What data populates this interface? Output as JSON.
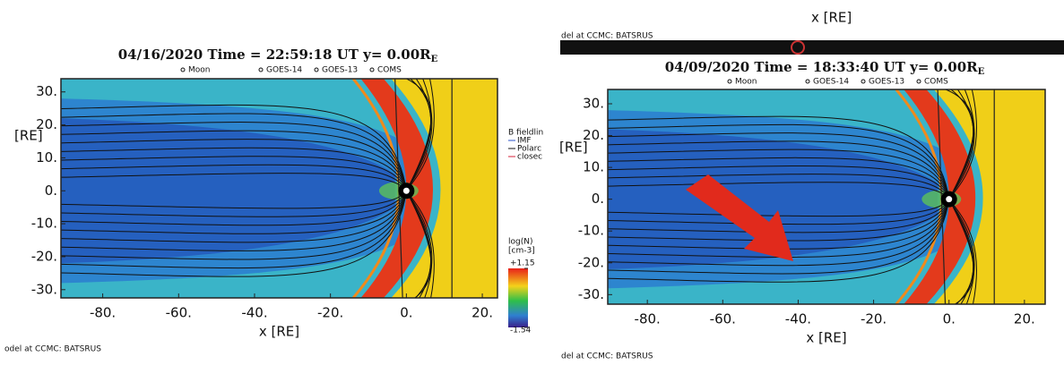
{
  "chart_data": [
    {
      "type": "field",
      "title": "04/16/2020 Time = 22:59:18 UT y= 0.00R",
      "title_subscript": "E",
      "markers": [
        "Moon",
        "GOES-14",
        "GOES-13",
        "COMS"
      ],
      "x_label": "x [RE]",
      "y_label": "[RE]",
      "xlim": [
        -91,
        24
      ],
      "ylim": [
        -32.5,
        34
      ],
      "xticks": [
        {
          "value": -80,
          "label": "-80."
        },
        {
          "value": -60,
          "label": "-60."
        },
        {
          "value": -40,
          "label": "-40."
        },
        {
          "value": -20,
          "label": "-20."
        },
        {
          "value": 0,
          "label": "0."
        },
        {
          "value": 20,
          "label": "20."
        }
      ],
      "yticks": [
        {
          "value": 30,
          "label": "30."
        },
        {
          "value": 20,
          "label": "20."
        },
        {
          "value": 10,
          "label": "10."
        },
        {
          "value": 0,
          "label": "0."
        },
        {
          "value": -10,
          "label": "-10."
        },
        {
          "value": -20,
          "label": "-20."
        },
        {
          "value": -30,
          "label": "-30."
        }
      ],
      "field_legend": [
        "B fieldlin",
        "IMF",
        "Polarc",
        "closec"
      ],
      "colorbar": {
        "label": "log(N)",
        "unit": "[cm-3]",
        "ticks": [
          {
            "value": 1.15,
            "label": "+1.15"
          },
          {
            "value": -1.54,
            "label": "-1.54"
          }
        ]
      },
      "footer": "odel at CCMC: BATSRUS"
    },
    {
      "type": "field",
      "title": "04/09/2020 Time = 18:33:40 UT y= 0.00R",
      "title_subscript": "E",
      "markers": [
        "Moon",
        "GOES-14",
        "GOES-13",
        "COMS"
      ],
      "x_label": "x [RE]",
      "y_label": "[RE]",
      "xlim": [
        -90.5,
        25.5
      ],
      "ylim": [
        -33,
        34.5
      ],
      "xticks": [
        {
          "value": -80,
          "label": "-80."
        },
        {
          "value": -60,
          "label": "-60."
        },
        {
          "value": -40,
          "label": "-40."
        },
        {
          "value": -20,
          "label": "-20."
        },
        {
          "value": 0,
          "label": "0."
        },
        {
          "value": 20,
          "label": "20."
        }
      ],
      "yticks": [
        {
          "value": 30,
          "label": "30."
        },
        {
          "value": 20,
          "label": "20."
        },
        {
          "value": 10,
          "label": "10."
        },
        {
          "value": 0,
          "label": "0."
        },
        {
          "value": -10,
          "label": "-10."
        },
        {
          "value": -20,
          "label": "-20."
        },
        {
          "value": -30,
          "label": "-30."
        }
      ],
      "footer": "del at CCMC: BATSRUS"
    }
  ],
  "header": {
    "x_label": "x [RE]",
    "source": "del at CCMC: BATSRUS"
  }
}
